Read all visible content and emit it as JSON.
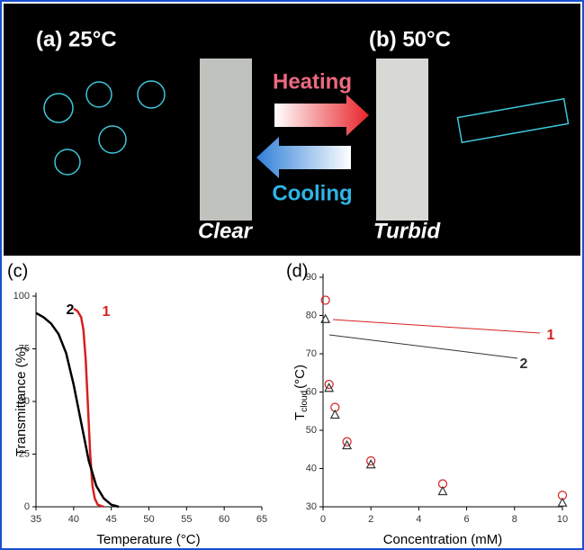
{
  "panel": {
    "label_a": "(a) 25°C",
    "label_b": "(b) 50°C",
    "heating": "Heating",
    "cooling": "Cooling",
    "clear": "Clear",
    "turbid": "Turbid"
  },
  "chart_data": [
    {
      "type": "line",
      "panel_label": "(c)",
      "x_label": "Temperature (°C)",
      "y_label": "Transmittance (%)",
      "xlim": [
        35,
        65
      ],
      "xticks": [
        35,
        40,
        45,
        50,
        55,
        60,
        65
      ],
      "ylim": [
        0,
        100
      ],
      "yticks": [
        0,
        25,
        50,
        75,
        100
      ],
      "series": [
        {
          "name": "1",
          "color": "#d62020",
          "x": [
            40,
            40.5,
            41,
            41.3,
            41.6,
            41.9,
            42.2,
            42.5,
            42.8,
            43.2,
            44
          ],
          "values": [
            94,
            93,
            90,
            84,
            70,
            48,
            25,
            10,
            4,
            1,
            0
          ]
        },
        {
          "name": "2",
          "color": "#000000",
          "x": [
            35,
            36,
            37,
            38,
            39,
            40,
            41,
            42,
            43,
            44,
            45,
            46
          ],
          "values": [
            92,
            90,
            87,
            82,
            73,
            58,
            40,
            22,
            10,
            4,
            1,
            0
          ]
        }
      ]
    },
    {
      "type": "scatter",
      "panel_label": "(d)",
      "x_label": "Concentration (mM)",
      "y_label": [
        "T",
        "cloud",
        "(°C)"
      ],
      "xlim": [
        0,
        10
      ],
      "xticks": [
        0,
        2,
        4,
        6,
        8,
        10
      ],
      "ylim": [
        30,
        90
      ],
      "yticks": [
        30,
        40,
        50,
        60,
        70,
        80,
        90
      ],
      "x": [
        0.1,
        0.25,
        0.5,
        1,
        2,
        5,
        10
      ],
      "series": [
        {
          "name": "1",
          "color": "#d62020",
          "marker": "circle",
          "values": [
            84,
            62,
            56,
            47,
            42,
            36,
            33
          ]
        },
        {
          "name": "2",
          "color": "#333333",
          "marker": "triangle",
          "values": [
            79,
            61,
            54,
            46,
            41,
            34,
            31
          ]
        }
      ]
    }
  ]
}
